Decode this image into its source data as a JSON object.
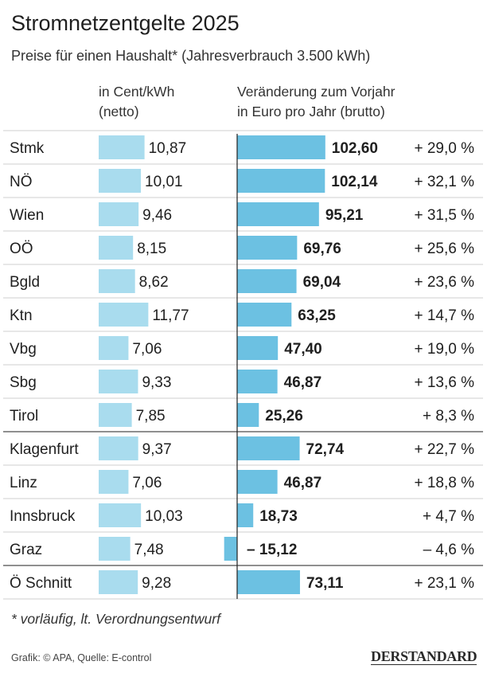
{
  "header": {
    "title": "Stromnetzentgelte 2025",
    "subtitle": "Preise für einen Haushalt* (Jahresverbrauch 3.500 kWh)"
  },
  "columns": {
    "left": "in Cent/kWh\n(netto)",
    "right": "Veränderung zum Vorjahr\nin Euro pro Jahr (brutto)"
  },
  "colors": {
    "left_bar": "#a9dcee",
    "right_bar": "#6cc1e2",
    "grid": "#cfcfcf",
    "axis": "#1f1f1f"
  },
  "chart_data": {
    "type": "bar",
    "categories": [
      "Stmk",
      "NÖ",
      "Wien",
      "OÖ",
      "Bgld",
      "Ktn",
      "Vbg",
      "Sbg",
      "Tirol",
      "Klagenfurt",
      "Linz",
      "Innsbruck",
      "Graz",
      "Ö Schnitt"
    ],
    "series": [
      {
        "name": "in Cent/kWh (netto)",
        "values": [
          10.87,
          10.01,
          9.46,
          8.15,
          8.62,
          11.77,
          7.06,
          9.33,
          7.85,
          9.37,
          7.06,
          10.03,
          7.48,
          9.28
        ],
        "labels": [
          "10,87",
          "10,01",
          "9,46",
          "8,15",
          "8,62",
          "11,77",
          "7,06",
          "9,33",
          "7,85",
          "9,37",
          "7,06",
          "10,03",
          "7,48",
          "9,28"
        ]
      },
      {
        "name": "Veränderung zum Vorjahr in Euro pro Jahr (brutto)",
        "values": [
          102.6,
          102.14,
          95.21,
          69.76,
          69.04,
          63.25,
          47.4,
          46.87,
          25.26,
          72.74,
          46.87,
          18.73,
          -15.12,
          73.11
        ],
        "labels": [
          "102,60",
          "102,14",
          "95,21",
          "69,76",
          "69,04",
          "63,25",
          "47,40",
          "46,87",
          "25,26",
          "72,74",
          "46,87",
          "18,73",
          "– 15,12",
          "73,11"
        ],
        "percent_labels": [
          "+ 29,0 %",
          "+ 32,1 %",
          "+ 31,5 %",
          "+ 25,6 %",
          "+ 23,6 %",
          "+ 14,7 %",
          "+ 19,0 %",
          "+ 13,6 %",
          "+ 8,3 %",
          "+ 22,7 %",
          "+ 18,8 %",
          "+ 4,7 %",
          "– 4,6 %",
          "+ 23,1 %"
        ]
      }
    ],
    "group_separators_after": [
      8,
      12
    ]
  },
  "footnote": "* vorläufig, lt. Verordnungsentwurf",
  "credit": "Grafik: © APA, Quelle: E-control",
  "brand": "DERSTANDARD"
}
